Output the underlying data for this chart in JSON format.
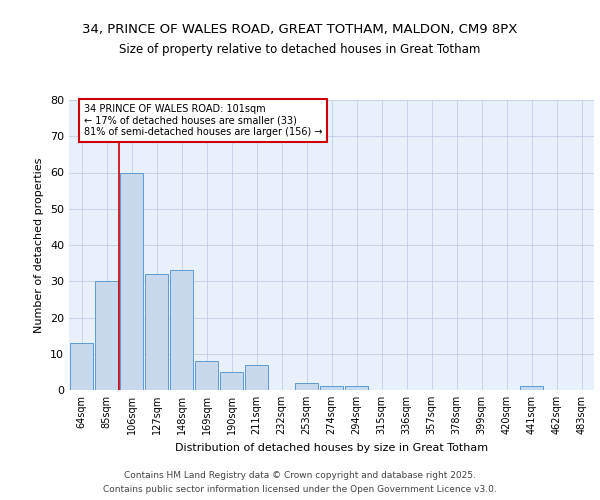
{
  "title1": "34, PRINCE OF WALES ROAD, GREAT TOTHAM, MALDON, CM9 8PX",
  "title2": "Size of property relative to detached houses in Great Totham",
  "xlabel": "Distribution of detached houses by size in Great Totham",
  "ylabel": "Number of detached properties",
  "categories": [
    "64sqm",
    "85sqm",
    "106sqm",
    "127sqm",
    "148sqm",
    "169sqm",
    "190sqm",
    "211sqm",
    "232sqm",
    "253sqm",
    "274sqm",
    "294sqm",
    "315sqm",
    "336sqm",
    "357sqm",
    "378sqm",
    "399sqm",
    "420sqm",
    "441sqm",
    "462sqm",
    "483sqm"
  ],
  "values": [
    13,
    30,
    60,
    32,
    33,
    8,
    5,
    7,
    0,
    2,
    1,
    1,
    0,
    0,
    0,
    0,
    0,
    0,
    1,
    0,
    0
  ],
  "bar_color": "#c8d9ee",
  "bar_edge_color": "#5b9bd5",
  "background_color": "#e8f0fb",
  "grid_color": "#c0cfe8",
  "redline_x": 1.5,
  "annotation_text": "34 PRINCE OF WALES ROAD: 101sqm\n← 17% of detached houses are smaller (33)\n81% of semi-detached houses are larger (156) →",
  "annotation_box_color": "#ffffff",
  "annotation_box_edge_color": "#cc0000",
  "annotation_text_color": "#000000",
  "redline_color": "#cc0000",
  "ylim": [
    0,
    80
  ],
  "yticks": [
    0,
    10,
    20,
    30,
    40,
    50,
    60,
    70,
    80
  ],
  "footer1": "Contains HM Land Registry data © Crown copyright and database right 2025.",
  "footer2": "Contains public sector information licensed under the Open Government Licence v3.0."
}
